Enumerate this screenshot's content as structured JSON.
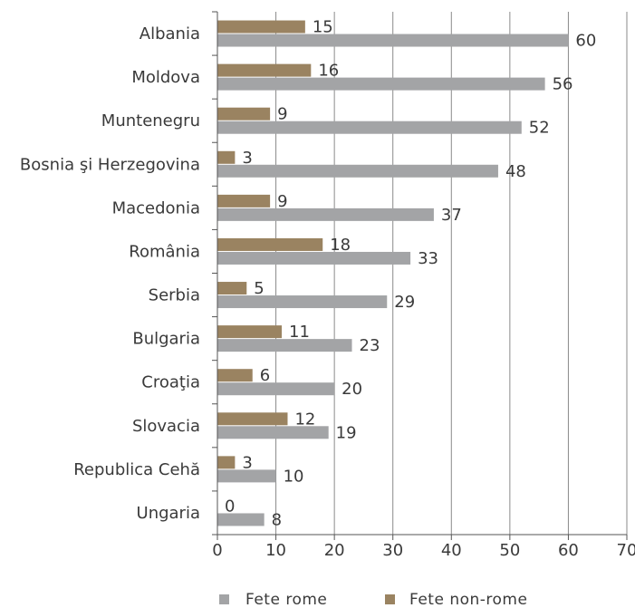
{
  "colors": {
    "rome": "#a3a4a6",
    "nonrome": "#9a8361",
    "grid": "#8a8a8a",
    "axis": "#555555",
    "text": "#3a3a3a"
  },
  "legend": {
    "rome": "Fete rome",
    "nonrome": "Fete non-rome"
  },
  "chart_data": {
    "type": "bar",
    "orientation": "horizontal",
    "categories": [
      "Albania",
      "Moldova",
      "Muntenegru",
      "Bosnia şi Herzegovina",
      "Macedonia",
      "România",
      "Serbia",
      "Bulgaria",
      "Croaţia",
      "Slovacia",
      "Republica Cehă",
      "Ungaria"
    ],
    "series": [
      {
        "name": "Fete non-rome",
        "key": "nonrome",
        "values": [
          15,
          16,
          9,
          3,
          9,
          18,
          5,
          11,
          6,
          12,
          3,
          0
        ]
      },
      {
        "name": "Fete rome",
        "key": "rome",
        "values": [
          60,
          56,
          52,
          48,
          37,
          33,
          29,
          23,
          20,
          19,
          10,
          8
        ]
      }
    ],
    "xticks": [
      0,
      10,
      20,
      30,
      40,
      50,
      60,
      70
    ],
    "xlim": [
      0,
      70
    ],
    "grid": true,
    "legend_position": "bottom"
  }
}
